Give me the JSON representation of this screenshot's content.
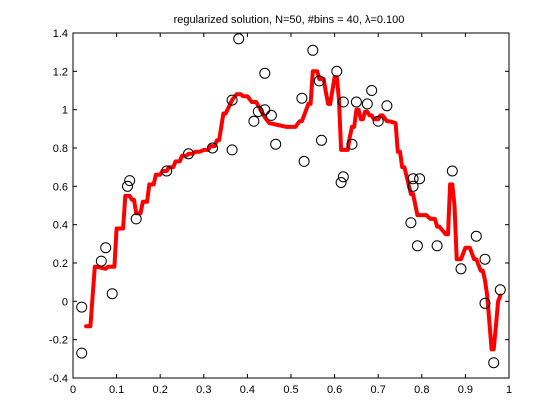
{
  "chart_data": {
    "type": "scatter",
    "title": "regularized solution, N=50, #bins = 40, λ=0.100",
    "xlabel": "",
    "ylabel": "",
    "xlim": [
      0,
      1
    ],
    "ylim": [
      -0.4,
      1.4
    ],
    "xticks": [
      0,
      0.1,
      0.2,
      0.3,
      0.4,
      0.5,
      0.6,
      0.7,
      0.8,
      0.9,
      1
    ],
    "xtick_labels": [
      "0",
      "0.1",
      "0.2",
      "0.3",
      "0.4",
      "0.5",
      "0.6",
      "0.7",
      "0.8",
      "0.9",
      "1"
    ],
    "yticks": [
      -0.4,
      -0.2,
      0,
      0.2,
      0.4,
      0.6,
      0.8,
      1,
      1.2,
      1.4
    ],
    "ytick_labels": [
      "-0.4",
      "-0.2",
      "0",
      "0.2",
      "0.4",
      "0.6",
      "0.8",
      "1",
      "1.2",
      "1.4"
    ],
    "grid": false,
    "colors": {
      "line": "#ff0000",
      "marker": "#000000",
      "axes": "#000000"
    },
    "scatter_points": [
      [
        0.02,
        -0.03
      ],
      [
        0.02,
        -0.27
      ],
      [
        0.065,
        0.21
      ],
      [
        0.075,
        0.28
      ],
      [
        0.09,
        0.04
      ],
      [
        0.125,
        0.6
      ],
      [
        0.13,
        0.63
      ],
      [
        0.145,
        0.43
      ],
      [
        0.215,
        0.68
      ],
      [
        0.265,
        0.77
      ],
      [
        0.32,
        0.8
      ],
      [
        0.365,
        0.79
      ],
      [
        0.365,
        1.05
      ],
      [
        0.38,
        1.37
      ],
      [
        0.415,
        0.94
      ],
      [
        0.425,
        0.99
      ],
      [
        0.44,
        1.0
      ],
      [
        0.44,
        1.19
      ],
      [
        0.455,
        0.97
      ],
      [
        0.465,
        0.82
      ],
      [
        0.525,
        1.06
      ],
      [
        0.53,
        0.73
      ],
      [
        0.55,
        1.31
      ],
      [
        0.565,
        1.15
      ],
      [
        0.57,
        0.84
      ],
      [
        0.605,
        1.2
      ],
      [
        0.615,
        0.62
      ],
      [
        0.62,
        0.65
      ],
      [
        0.62,
        1.04
      ],
      [
        0.64,
        0.82
      ],
      [
        0.65,
        1.04
      ],
      [
        0.675,
        1.03
      ],
      [
        0.685,
        1.1
      ],
      [
        0.7,
        0.94
      ],
      [
        0.72,
        1.02
      ],
      [
        0.775,
        0.41
      ],
      [
        0.78,
        0.64
      ],
      [
        0.78,
        0.6
      ],
      [
        0.79,
        0.29
      ],
      [
        0.795,
        0.64
      ],
      [
        0.835,
        0.29
      ],
      [
        0.87,
        0.68
      ],
      [
        0.89,
        0.17
      ],
      [
        0.925,
        0.34
      ],
      [
        0.945,
        -0.01
      ],
      [
        0.945,
        0.22
      ],
      [
        0.965,
        -0.32
      ],
      [
        0.98,
        0.06
      ]
    ],
    "line_series": {
      "x": [
        0.03,
        0.04,
        0.05,
        0.055,
        0.075,
        0.08,
        0.095,
        0.1,
        0.115,
        0.12,
        0.13,
        0.135,
        0.14,
        0.145,
        0.155,
        0.16,
        0.17,
        0.175,
        0.185,
        0.19,
        0.2,
        0.205,
        0.215,
        0.22,
        0.23,
        0.235,
        0.245,
        0.25,
        0.26,
        0.265,
        0.275,
        0.28,
        0.29,
        0.3,
        0.31,
        0.315,
        0.325,
        0.33,
        0.335,
        0.345,
        0.35,
        0.365,
        0.375,
        0.385,
        0.39,
        0.4,
        0.41,
        0.42,
        0.435,
        0.44,
        0.45,
        0.47,
        0.49,
        0.51,
        0.52,
        0.525,
        0.54,
        0.545,
        0.55,
        0.56,
        0.565,
        0.575,
        0.58,
        0.585,
        0.59,
        0.595,
        0.6,
        0.605,
        0.61,
        0.615,
        0.62,
        0.63,
        0.635,
        0.64,
        0.645,
        0.65,
        0.655,
        0.66,
        0.665,
        0.67,
        0.675,
        0.68,
        0.685,
        0.69,
        0.7,
        0.705,
        0.71,
        0.72,
        0.725,
        0.74,
        0.745,
        0.75,
        0.755,
        0.76,
        0.775,
        0.78,
        0.79,
        0.81,
        0.82,
        0.83,
        0.835,
        0.84,
        0.855,
        0.86,
        0.865,
        0.87,
        0.875,
        0.88,
        0.885,
        0.89,
        0.9,
        0.91,
        0.92,
        0.925,
        0.935,
        0.94,
        0.945,
        0.95,
        0.96,
        0.965,
        0.97,
        0.975,
        0.98
      ],
      "y": [
        -0.13,
        -0.13,
        0.18,
        0.18,
        0.17,
        0.18,
        0.18,
        0.38,
        0.38,
        0.55,
        0.55,
        0.53,
        0.53,
        0.46,
        0.46,
        0.52,
        0.52,
        0.61,
        0.61,
        0.66,
        0.66,
        0.68,
        0.68,
        0.7,
        0.7,
        0.73,
        0.73,
        0.76,
        0.76,
        0.77,
        0.77,
        0.78,
        0.78,
        0.79,
        0.79,
        0.81,
        0.81,
        0.84,
        0.84,
        0.98,
        0.98,
        1.05,
        1.08,
        1.08,
        1.07,
        1.07,
        1.04,
        1.04,
        0.98,
        0.96,
        0.93,
        0.92,
        0.91,
        0.91,
        0.94,
        0.94,
        1.03,
        1.03,
        1.2,
        1.2,
        1.16,
        1.16,
        1.09,
        1.03,
        1.03,
        1.1,
        1.17,
        1.17,
        1.05,
        0.79,
        0.79,
        0.79,
        0.86,
        0.91,
        0.91,
        1.0,
        1.0,
        0.95,
        0.95,
        0.99,
        0.99,
        0.97,
        0.97,
        0.95,
        0.95,
        0.97,
        0.97,
        0.94,
        0.94,
        0.93,
        0.78,
        0.78,
        0.7,
        0.7,
        0.56,
        0.56,
        0.45,
        0.45,
        0.43,
        0.43,
        0.39,
        0.39,
        0.35,
        0.35,
        0.61,
        0.61,
        0.5,
        0.22,
        0.22,
        0.22,
        0.28,
        0.28,
        0.22,
        0.22,
        0.16,
        0.16,
        0.11,
        0.03,
        -0.25,
        -0.25,
        -0.13,
        0.0,
        0.03
      ]
    }
  }
}
